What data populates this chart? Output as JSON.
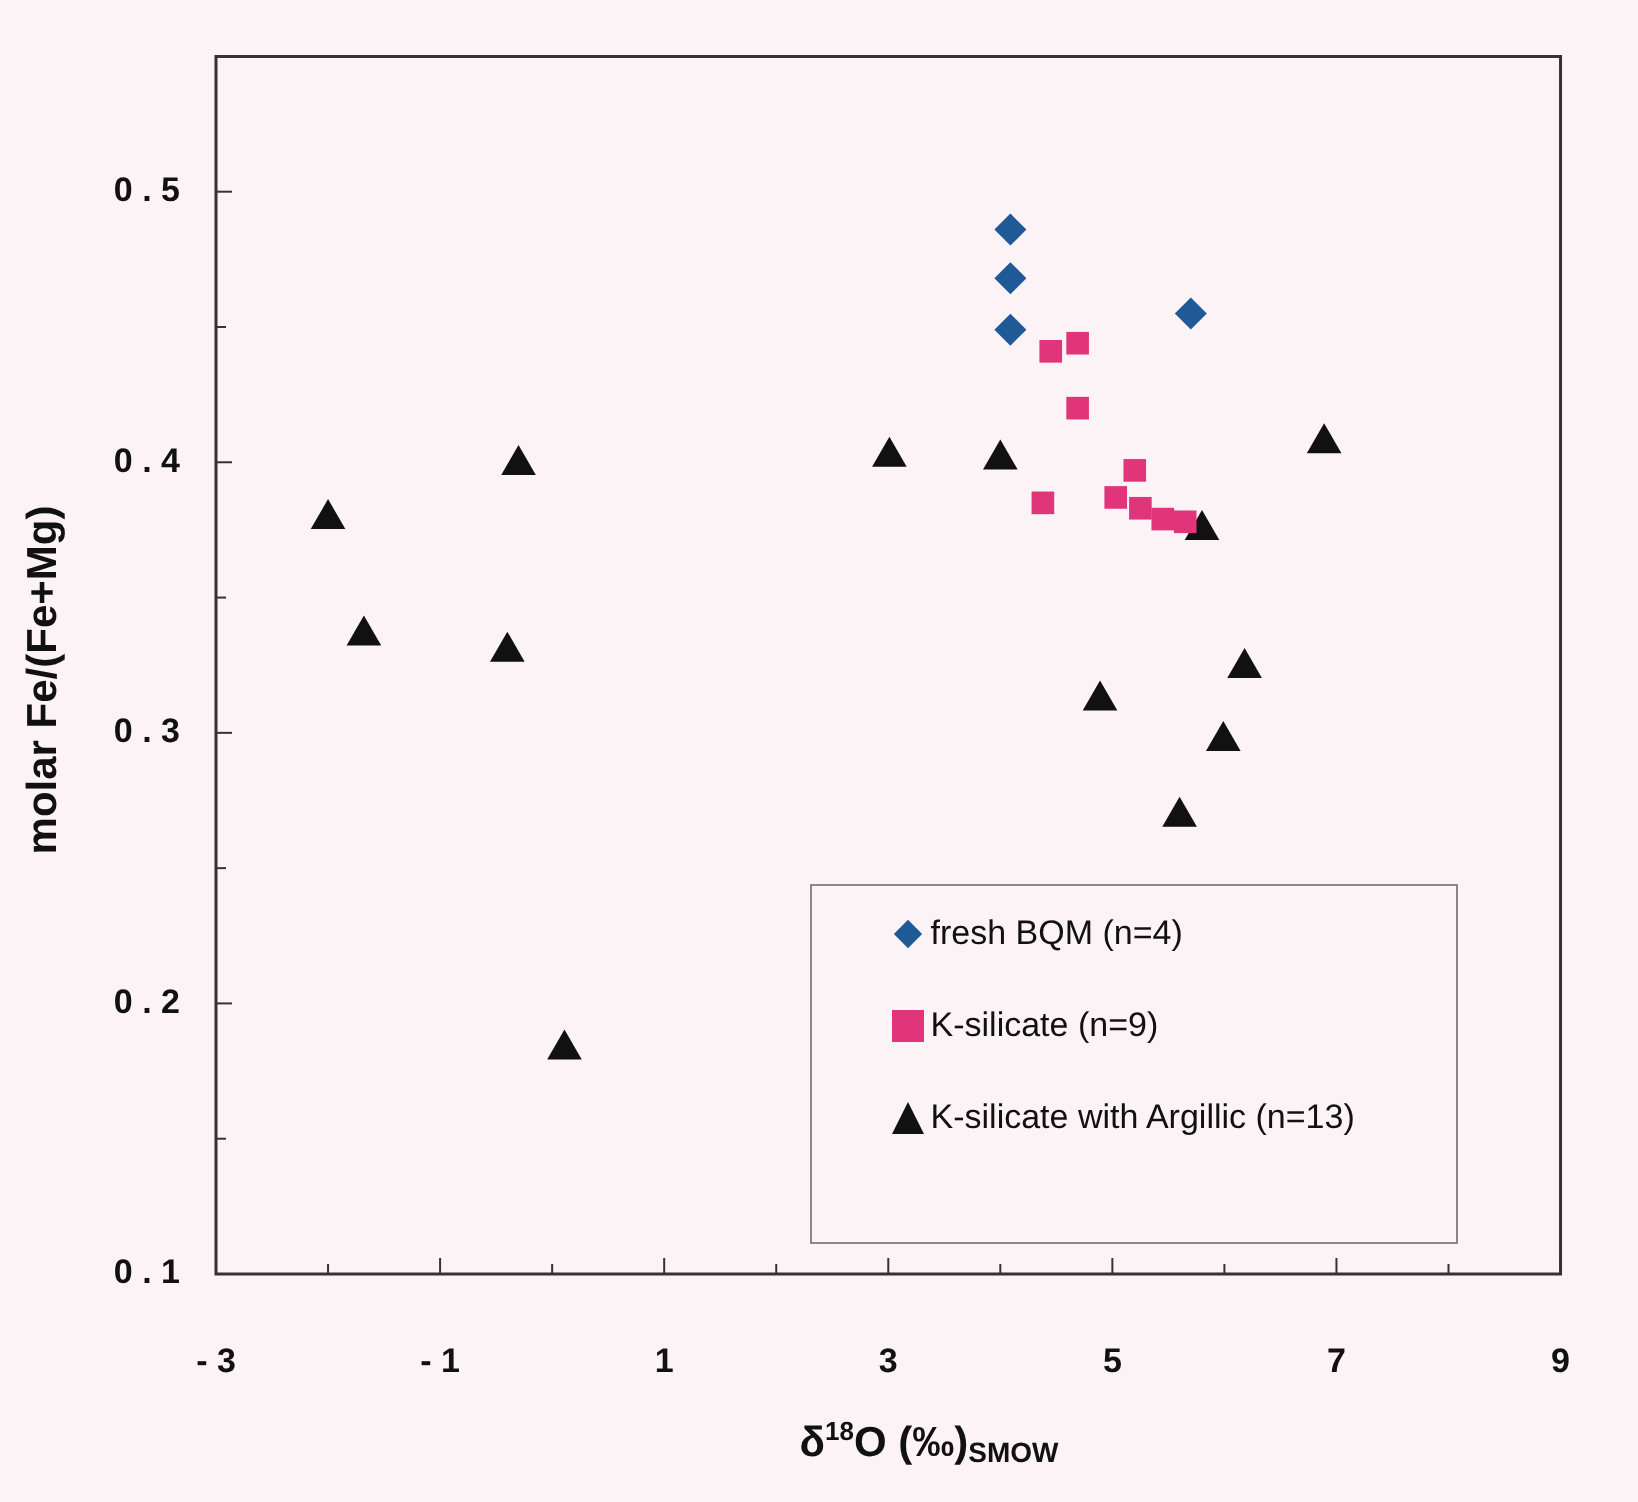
{
  "chart_data": {
    "type": "scatter",
    "xlabel": "δ$^{18}$O (‰)$_{SMOW}$",
    "ylabel": "molar Fe/(Fe+Mg)",
    "xlim": [
      -3,
      9
    ],
    "ylim": [
      0.1,
      0.55
    ],
    "xticks": [
      -3,
      {
        "value": -2,
        "label": null
      },
      -1,
      {
        "value": 0,
        "label": null
      },
      1,
      {
        "value": 2,
        "label": null
      },
      3,
      {
        "value": 4,
        "label": null
      },
      5,
      {
        "value": 6,
        "label": null
      },
      7,
      {
        "value": 8,
        "label": null
      },
      9
    ],
    "yticks": [
      0.1,
      {
        "value": 0.15,
        "label": null
      },
      0.2,
      {
        "value": 0.25,
        "label": null
      },
      0.3,
      {
        "value": 0.35,
        "label": null
      },
      0.4,
      {
        "value": 0.45,
        "label": null
      },
      0.5
    ],
    "grid": false,
    "legend": "bottom right",
    "series": [
      {
        "name": "fresh BQM (n=4)",
        "color": "#1f5a96",
        "marker": "diamond",
        "x": [
          4.09,
          4.09,
          4.09,
          5.7
        ],
        "values": [
          0.486,
          0.468,
          0.449,
          0.455
        ]
      },
      {
        "name": "K-silicate (n=9)",
        "color": "#e0357a",
        "marker": "square",
        "x": [
          4.45,
          4.69,
          4.69,
          4.38,
          5.03,
          5.2,
          5.25,
          5.45,
          5.65
        ],
        "values": [
          0.441,
          0.444,
          0.42,
          0.385,
          0.387,
          0.397,
          0.383,
          0.379,
          0.378
        ]
      },
      {
        "name": "K-silicate with Argillic (n=13)",
        "color": "#111111",
        "marker": "triangle",
        "x": [
          -2.0,
          -1.68,
          -0.3,
          -0.4,
          0.11,
          3.01,
          4.0,
          6.89,
          5.8,
          6.18,
          4.89,
          5.99,
          5.6
        ],
        "values": [
          0.379,
          0.336,
          0.399,
          0.33,
          0.183,
          0.402,
          0.401,
          0.407,
          0.375,
          0.324,
          0.312,
          0.297,
          0.269
        ]
      }
    ]
  }
}
